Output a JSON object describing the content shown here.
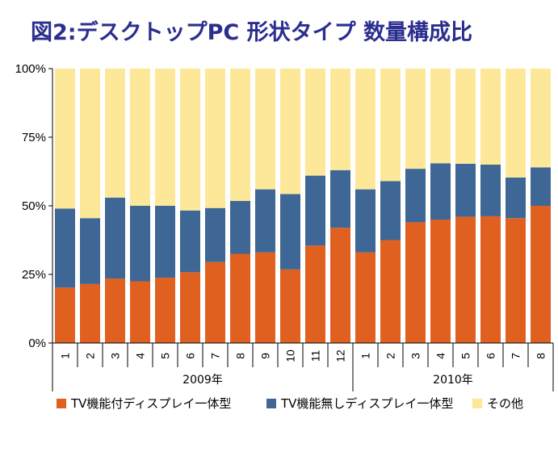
{
  "title": "図2:デスクトップPC 形状タイプ 数量構成比",
  "chart_data": {
    "type": "bar",
    "stacked": true,
    "ylim": [
      0,
      100
    ],
    "yticks": [
      "0%",
      "25%",
      "50%",
      "75%",
      "100%"
    ],
    "categories": [
      "1",
      "2",
      "3",
      "4",
      "5",
      "6",
      "7",
      "8",
      "9",
      "10",
      "11",
      "12",
      "1",
      "2",
      "3",
      "4",
      "5",
      "6",
      "7",
      "8"
    ],
    "groups": [
      {
        "label": "2009年",
        "count": 12
      },
      {
        "label": "2010年",
        "count": 8
      }
    ],
    "series": [
      {
        "name": "TV機能付ディスプレイ一体型",
        "color": "#e06020",
        "values": [
          20.2,
          21.5,
          23.5,
          22.5,
          23.8,
          25.8,
          29.5,
          32.5,
          33.0,
          26.8,
          35.5,
          42.0,
          33.0,
          37.5,
          44.0,
          45.0,
          46.0,
          46.2,
          45.5,
          50.0
        ]
      },
      {
        "name": "TV機能無しディスプレイ一体型",
        "color": "#3e6796",
        "values": [
          28.8,
          24.0,
          29.5,
          27.5,
          26.2,
          22.5,
          19.7,
          19.3,
          23.0,
          27.5,
          25.5,
          21.0,
          23.0,
          21.5,
          19.5,
          20.5,
          19.3,
          18.8,
          14.8,
          14.0
        ]
      },
      {
        "name": "その他",
        "color": "#fde89a",
        "values": [
          51.0,
          54.5,
          47.0,
          50.0,
          50.0,
          51.7,
          50.8,
          48.2,
          44.0,
          45.7,
          39.0,
          37.0,
          44.0,
          41.0,
          36.5,
          34.5,
          34.7,
          35.0,
          39.7,
          36.0
        ]
      }
    ],
    "grid": false,
    "legend_position": "bottom"
  }
}
